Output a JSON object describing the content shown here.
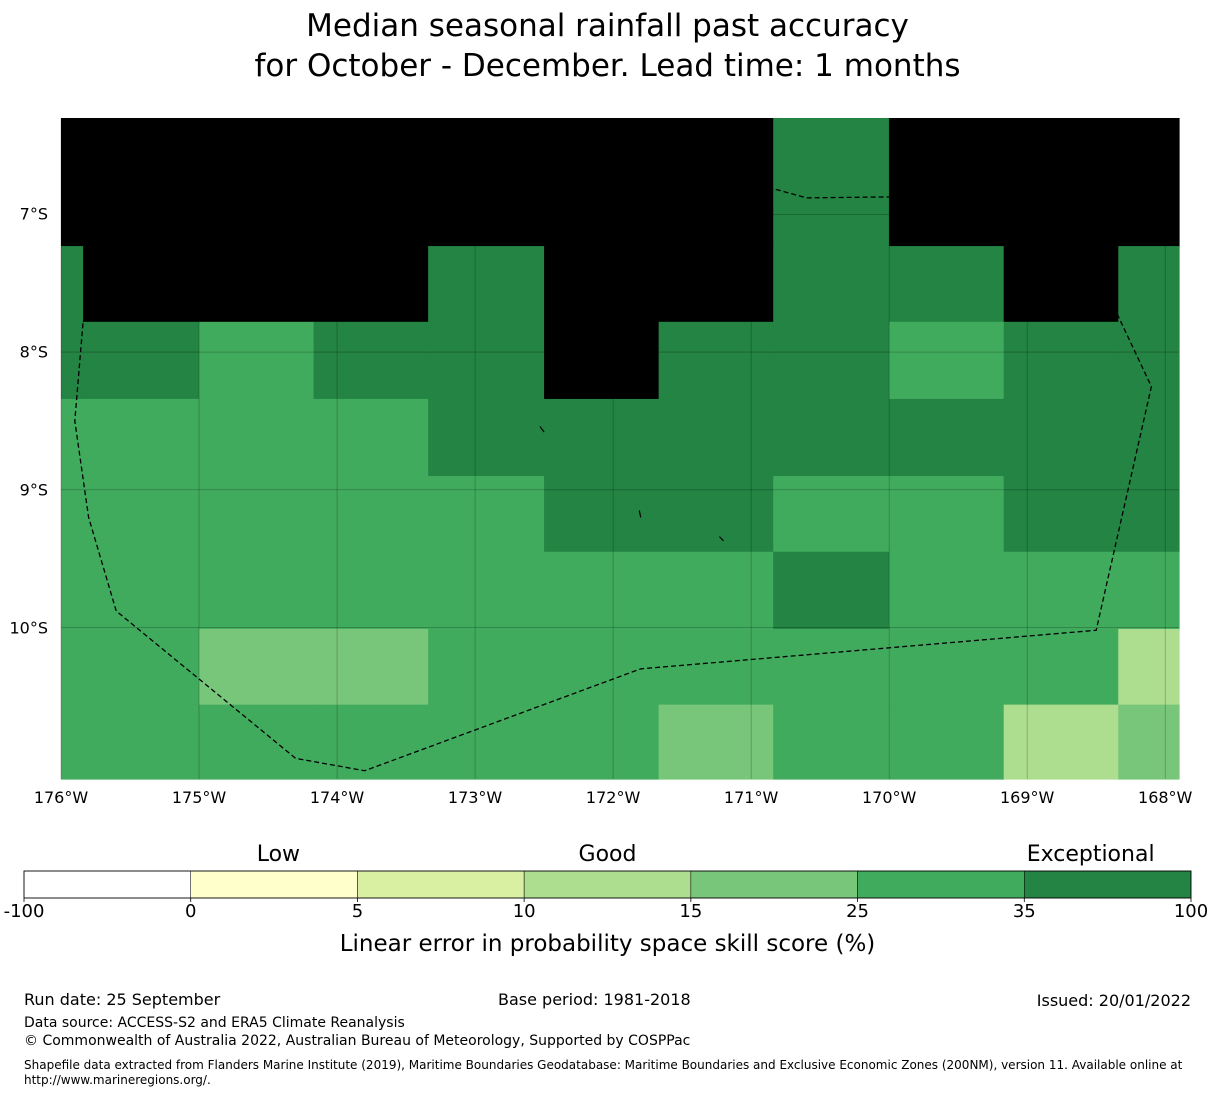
{
  "title": {
    "line1": "Median seasonal rainfall past accuracy",
    "line2": "for October - December. Lead time: 1 months"
  },
  "map": {
    "lon_range": [
      -176,
      -167.9
    ],
    "lat_range": [
      -6.3,
      -11.1
    ],
    "lon_ticks": [
      {
        "value": -176,
        "label": "176°W"
      },
      {
        "value": -175,
        "label": "175°W"
      },
      {
        "value": -174,
        "label": "174°W"
      },
      {
        "value": -173,
        "label": "173°W"
      },
      {
        "value": -172,
        "label": "172°W"
      },
      {
        "value": -171,
        "label": "171°W"
      },
      {
        "value": -170,
        "label": "170°W"
      },
      {
        "value": -169,
        "label": "169°W"
      },
      {
        "value": -168,
        "label": "168°W"
      }
    ],
    "lat_ticks": [
      {
        "value": -7,
        "label": "7°S"
      },
      {
        "value": -8,
        "label": "8°S"
      },
      {
        "value": -9,
        "label": "9°S"
      },
      {
        "value": -10,
        "label": "10°S"
      }
    ],
    "col_edges": [
      -176,
      -175.84,
      -175,
      -174.17,
      -173.34,
      -172.5,
      -171.67,
      -170.84,
      -170,
      -169.17,
      -168.34,
      -167.9
    ],
    "row_edges": [
      -6.3,
      -7.23,
      -7.78,
      -8.34,
      -8.9,
      -9.45,
      -10.01,
      -10.56,
      -11.1
    ],
    "cells": [
      [
        7,
        7,
        7,
        7,
        7,
        7,
        7,
        6,
        7,
        7,
        7
      ],
      [
        6,
        7,
        7,
        7,
        6,
        7,
        7,
        6,
        6,
        7,
        6
      ],
      [
        6,
        6,
        5,
        6,
        6,
        7,
        6,
        6,
        5,
        6,
        6
      ],
      [
        5,
        5,
        5,
        5,
        6,
        6,
        6,
        6,
        6,
        6,
        6
      ],
      [
        5,
        5,
        5,
        5,
        5,
        6,
        6,
        5,
        5,
        6,
        6
      ],
      [
        5,
        5,
        5,
        5,
        5,
        5,
        5,
        6,
        5,
        5,
        5
      ],
      [
        5,
        5,
        4,
        4,
        5,
        5,
        5,
        5,
        5,
        5,
        3
      ],
      [
        5,
        5,
        5,
        5,
        5,
        5,
        4,
        5,
        5,
        3,
        4
      ]
    ],
    "eez_boundary": [
      [
        -175.84,
        -7.78
      ],
      [
        -175.6,
        -7.55
      ],
      [
        -174.4,
        -6.9
      ],
      [
        -173.3,
        -6.47
      ],
      [
        -171.6,
        -6.6
      ],
      [
        -170.6,
        -6.88
      ],
      [
        -168.9,
        -6.86
      ],
      [
        -168.5,
        -7.4
      ],
      [
        -168.1,
        -8.25
      ],
      [
        -168.5,
        -10.02
      ],
      [
        -171.8,
        -10.3
      ],
      [
        -173.8,
        -11.04
      ],
      [
        -174.3,
        -10.95
      ],
      [
        -175.6,
        -9.88
      ],
      [
        -175.8,
        -9.2
      ],
      [
        -175.9,
        -8.5
      ],
      [
        -175.84,
        -7.78
      ]
    ],
    "islands": [
      [
        [
          -172.53,
          -8.54
        ],
        [
          -172.5,
          -8.58
        ]
      ],
      [
        [
          -171.81,
          -9.15
        ],
        [
          -171.8,
          -9.2
        ]
      ],
      [
        [
          -171.23,
          -9.34
        ],
        [
          -171.2,
          -9.37
        ]
      ]
    ]
  },
  "colorbar": {
    "boundaries": [
      -100,
      0,
      5,
      10,
      15,
      25,
      35,
      100
    ],
    "tick_labels": [
      "-100",
      "0",
      "5",
      "10",
      "15",
      "25",
      "35",
      "100"
    ],
    "colors": [
      "#ffffff",
      "#ffffcc",
      "#d9f0a3",
      "#addd8e",
      "#78c679",
      "#41ab5d",
      "#238443"
    ],
    "category_labels": [
      {
        "label": "Low",
        "at": 0.218
      },
      {
        "label": "Good",
        "at": 0.5
      },
      {
        "label": "Exceptional",
        "at": 0.914
      }
    ],
    "title": "Linear error in probability space skill score (%)"
  },
  "footer": {
    "run_date": "Run date: 25 September",
    "base_period": "Base period: 1981-2018",
    "issued": "Issued: 20/01/2022",
    "data_source": "Data source: ACCESS-S2 and ERA5 Climate Reanalysis",
    "copyright": "© Commonwealth of Australia 2022, Australian Bureau of Meteorology, Supported by COSPPac",
    "shapefile": "Shapefile data extracted from Flanders Marine Institute (2019), Maritime Boundaries Geodatabase: Maritime Boundaries and Exclusive Economic Zones (200NM), version 11. Available online at http://www.marineregions.org/."
  }
}
